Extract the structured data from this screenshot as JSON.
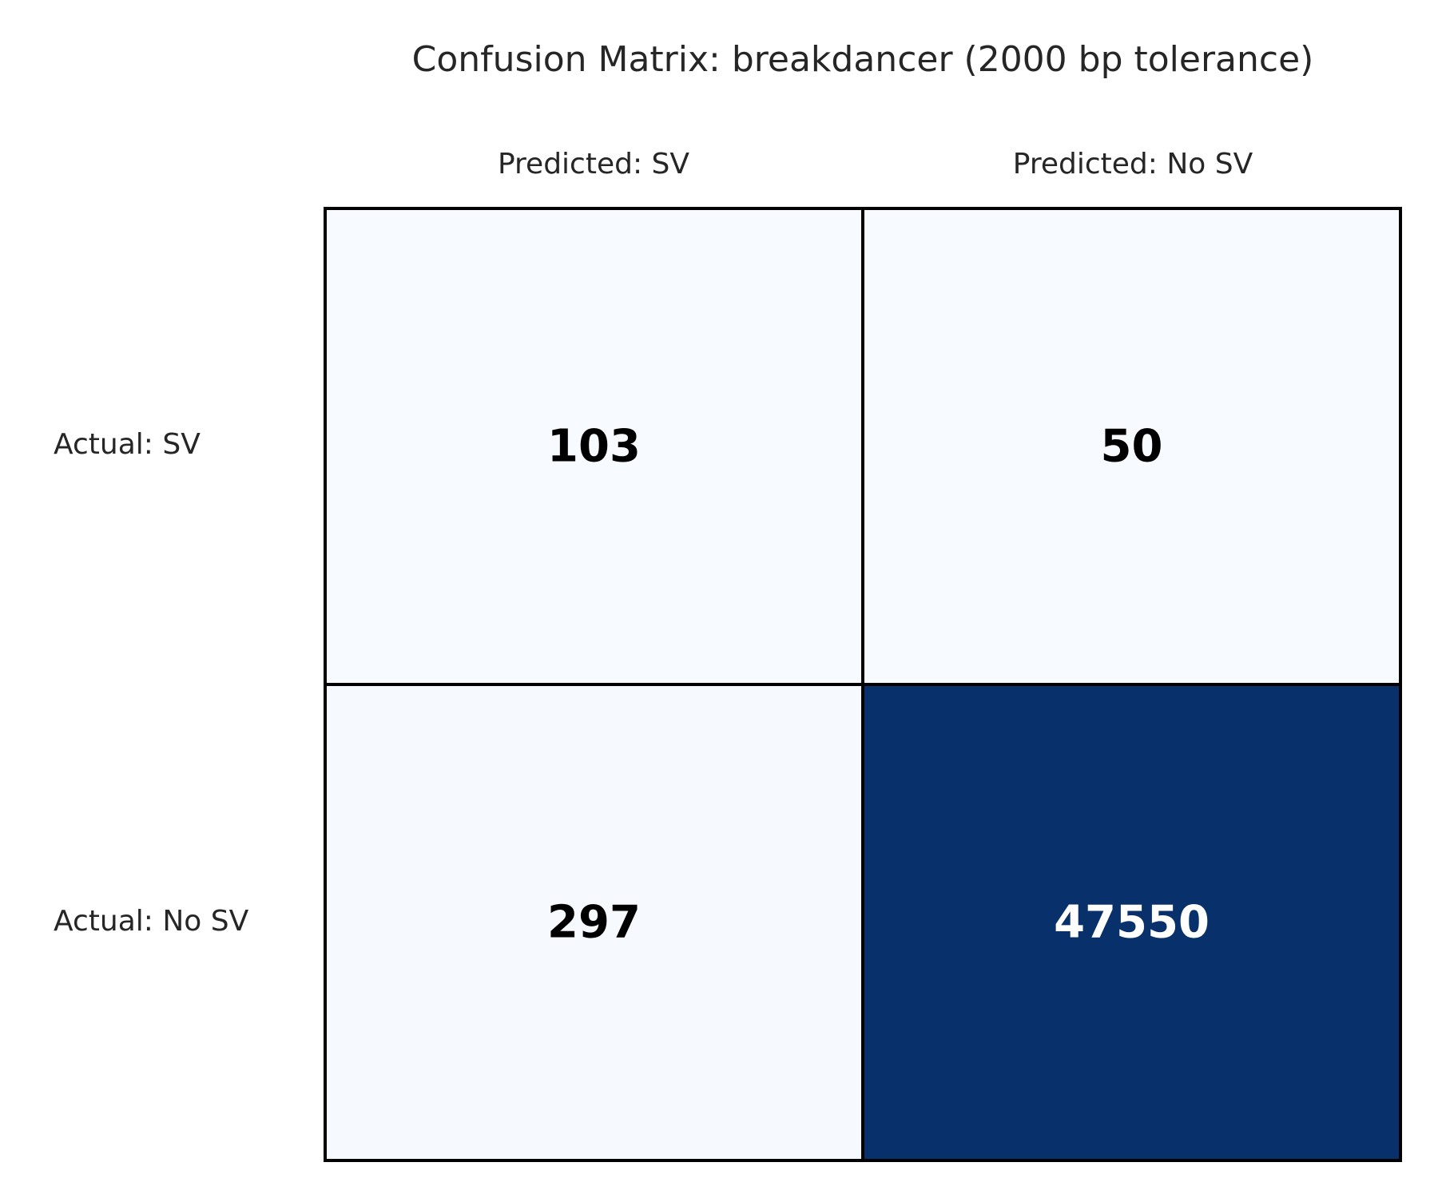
{
  "chart_data": {
    "type": "heatmap",
    "title": "Confusion Matrix: breakdancer (2000 bp tolerance)",
    "x_categories": [
      "Predicted: SV",
      "Predicted: No SV"
    ],
    "y_categories": [
      "Actual: SV",
      "Actual: No SV"
    ],
    "values": [
      [
        103,
        50
      ],
      [
        297,
        47550
      ]
    ],
    "colormap": "Blues",
    "colormap_low": "#f7fbff",
    "colormap_high": "#08306b",
    "text_color_light": "#ffffff",
    "text_color_dark": "#000000",
    "grid_color": "#000000",
    "colorbar": false
  }
}
